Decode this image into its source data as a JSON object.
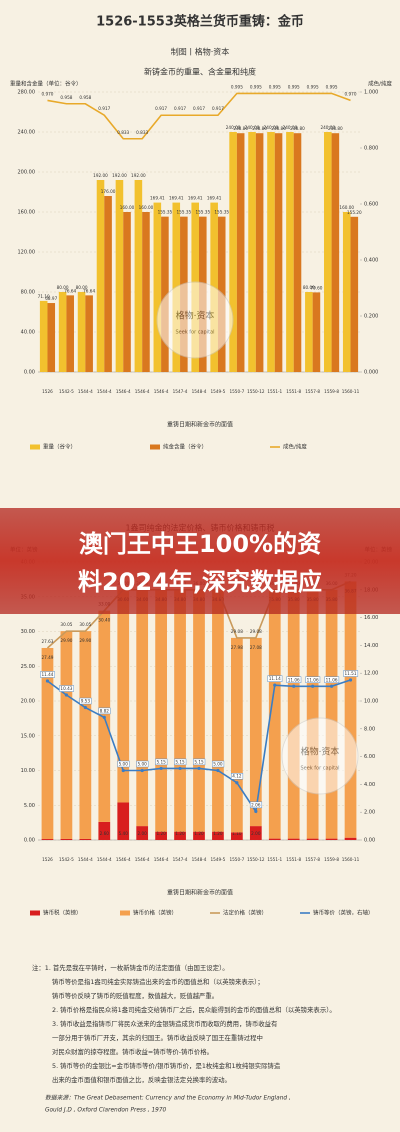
{
  "header": {
    "title": "1526-1553英格兰货币重铸：金币",
    "subtitle": "制图丨格物·资本"
  },
  "banner": {
    "lines": [
      "澳门王中王100%的资",
      "料2024年,深究数据应"
    ]
  },
  "watermarks": [
    {
      "title": "格物·资本",
      "slogan": "Seek for capital"
    },
    {
      "title": "格物·资本",
      "slogan": "Seek for capital"
    }
  ],
  "chart_data": [
    {
      "type": "bar",
      "title": "新铸金币的重量、含金量和纯度",
      "ylabel": "重量和含金量（单位：谷令）",
      "y2label": "成色/纯度",
      "xlabel": "重铸日期和新金币的面值",
      "grid": true,
      "stacked": false,
      "categories": [
        "1526",
        "1542-5",
        "1544-4",
        "1544-4",
        "1546-4",
        "1546-4",
        "1546-4",
        "1547-4",
        "1548-4",
        "1549-5",
        "1550-7",
        "1550-12",
        "1551-1",
        "1551-8",
        "1557-8",
        "1559-8",
        "1560-11"
      ],
      "ylim": [
        0,
        280
      ],
      "yticks": [
        {
          "value": 0,
          "label": "0.00"
        },
        {
          "value": 40,
          "label": "40.00"
        },
        {
          "value": 80,
          "label": "80.00"
        },
        {
          "value": 120,
          "label": "120.00"
        },
        {
          "value": 160,
          "label": "160.00"
        },
        {
          "value": 200,
          "label": "200.00"
        },
        {
          "value": 240,
          "label": "240.00"
        },
        {
          "value": 280,
          "label": "280.00"
        }
      ],
      "y2lim": [
        0,
        1
      ],
      "y2ticks": [
        {
          "value": 0,
          "label": "0.000"
        },
        {
          "value": 0.2,
          "label": "0.200"
        },
        {
          "value": 0.4,
          "label": "0.400"
        },
        {
          "value": 0.6,
          "label": "0.600"
        },
        {
          "value": 0.8,
          "label": "0.800"
        },
        {
          "value": 1,
          "label": "1.000"
        }
      ],
      "series": [
        {
          "name": "重量（谷令）",
          "color": "#f2c12e",
          "mark": "bar",
          "values": [
            71.1,
            80,
            80,
            192,
            192,
            192,
            169.41,
            169.41,
            169.41,
            169.41,
            240,
            240,
            240,
            240,
            80,
            240,
            160
          ],
          "value_labels": [
            "71.10",
            "80.00",
            "80.00",
            "192.00",
            "192.00",
            "192.00",
            "169.41",
            "169.41",
            "169.41",
            "169.41",
            "240.00",
            "240.00",
            "240.00",
            "240.00",
            "80.00",
            "240.00",
            "160.00"
          ]
        },
        {
          "name": "纯金含量（谷令）",
          "color": "#d9781f",
          "mark": "bar",
          "values": [
            68.97,
            76.64,
            76.64,
            176,
            160,
            160,
            155.35,
            155.35,
            155.35,
            155.35,
            238.8,
            238.8,
            238.8,
            238.8,
            79.6,
            238.8,
            155.2
          ],
          "value_labels": [
            "68.97",
            "76.64",
            "76.64",
            "176.00",
            "160.00",
            "160.00",
            "155.35",
            "155.35",
            "155.35",
            "155.35",
            "238.80",
            "238.80",
            "238.80",
            "238.80",
            "79.60",
            "238.80",
            "155.20"
          ]
        },
        {
          "name": "成色/纯度",
          "color": "#e8a92a",
          "mark": "line",
          "axis": "y2",
          "values": [
            0.97,
            0.958,
            0.958,
            0.917,
            0.833,
            0.833,
            0.917,
            0.917,
            0.917,
            0.917,
            0.995,
            0.995,
            0.995,
            0.995,
            0.995,
            0.995,
            0.97
          ],
          "value_labels": [
            "0.970",
            "0.958",
            "0.958",
            "0.917",
            "0.833",
            "0.833",
            "0.917",
            "0.917",
            "0.917",
            "0.917",
            "0.995",
            "0.995",
            "0.995",
            "0.995",
            "0.995",
            "0.995",
            "0.970"
          ]
        }
      ]
    },
    {
      "type": "bar",
      "title": "1盎司纯金的法定价格、铸币价格和铸币税",
      "ylabel": "单位：英镑",
      "y2label": "单位：英镑",
      "xlabel": "重铸日期和新金币的面值",
      "grid": true,
      "stacked": true,
      "categories": [
        "1526",
        "1542-5",
        "1544-4",
        "1544-4",
        "1546-4",
        "1546-4",
        "1546-4",
        "1547-4",
        "1548-4",
        "1549-5",
        "1550-7",
        "1550-12",
        "1551-1",
        "1551-8",
        "1557-8",
        "1559-8",
        "1560-11"
      ],
      "ylim": [
        0,
        40
      ],
      "yticks": [
        {
          "value": 0,
          "label": "0.00"
        },
        {
          "value": 5,
          "label": "5.00"
        },
        {
          "value": 10,
          "label": "10.00"
        },
        {
          "value": 15,
          "label": "15.00"
        },
        {
          "value": 20,
          "label": "20.00"
        },
        {
          "value": 25,
          "label": "25.00"
        },
        {
          "value": 30,
          "label": "30.00"
        },
        {
          "value": 35,
          "label": "35.00"
        },
        {
          "value": 40,
          "label": "40.00"
        }
      ],
      "y2lim": [
        0,
        20
      ],
      "y2ticks": [
        {
          "value": 0,
          "label": "0.00"
        },
        {
          "value": 2,
          "label": "2.00"
        },
        {
          "value": 4,
          "label": "4.00"
        },
        {
          "value": 6,
          "label": "6.00"
        },
        {
          "value": 8,
          "label": "8.00"
        },
        {
          "value": 10,
          "label": "10.00"
        },
        {
          "value": 12,
          "label": "12.00"
        },
        {
          "value": 14,
          "label": "14.00"
        },
        {
          "value": 16,
          "label": "16.00"
        },
        {
          "value": 18,
          "label": "18.00"
        },
        {
          "value": 20,
          "label": "20.00"
        }
      ],
      "series": [
        {
          "name": "铸币税（英镑）",
          "color": "#d81e1e",
          "mark": "bar",
          "values": [
            0.14,
            0.15,
            0.15,
            2.6,
            5.4,
            2,
            1.2,
            1.2,
            1.2,
            1.2,
            1.1,
            2,
            0.2,
            0.2,
            0.2,
            0.2,
            0.33
          ],
          "value_labels": [
            "0.14",
            "0.15",
            "0.15",
            "2.60",
            "5.40",
            "2.00",
            "1.20",
            "1.20",
            "1.20",
            "1.20",
            "1.10",
            "2.00",
            "0.20",
            "0.20",
            "0.20",
            "0.20",
            "0.33"
          ]
        },
        {
          "name": "铸币价格（英镑）",
          "color": "#f4a04e",
          "mark": "bar",
          "values": [
            27.49,
            29.9,
            29.9,
            30.4,
            30.6,
            34,
            34.8,
            34.8,
            34.8,
            34.8,
            27.98,
            27.08,
            35.8,
            35.8,
            35.8,
            35.8,
            36.87
          ],
          "value_labels": [
            "27.49",
            "29.90",
            "29.90",
            "30.40",
            "30.60",
            "34.00",
            "34.80",
            "34.80",
            "34.80",
            "34.80",
            "27.98",
            "27.08",
            "35.80",
            "35.80",
            "35.80",
            "35.80",
            "36.87"
          ]
        },
        {
          "name": "法定价格（英镑）",
          "color": "#c99a5b",
          "mark": "line",
          "values": [
            27.63,
            30.05,
            30.05,
            33,
            36,
            36,
            36,
            36,
            36,
            36,
            29.08,
            29.08,
            36,
            36,
            36,
            36,
            37.2
          ],
          "value_labels": [
            "27.63",
            "30.05",
            "30.05",
            "33.00",
            "36.00",
            "36.00",
            "36.00",
            "36.00",
            "36.00",
            "36.00",
            "29.08",
            "29.08",
            "36.00",
            "36.00",
            "36.00",
            "36.00",
            "37.20"
          ]
        },
        {
          "name": "铸币等价（英镑，右轴）",
          "color": "#3b7dc4",
          "mark": "line",
          "axis": "y2",
          "markers": true,
          "values": [
            11.44,
            10.43,
            9.53,
            8.82,
            5,
            5,
            5.15,
            5.15,
            5.15,
            5,
            4.12,
            2.06,
            11.14,
            11.06,
            11.06,
            11.06,
            11.51
          ],
          "value_labels": [
            "11.44",
            "10.43",
            "9.53",
            "8.82",
            "5.00",
            "5.00",
            "5.15",
            "5.15",
            "5.15",
            "5.00",
            "4.12",
            "2.06",
            "11.14",
            "11.06",
            "11.06",
            "11.06",
            "11.51"
          ]
        }
      ]
    }
  ],
  "notes": [
    "注：1. 首先是我在平铸时，一枚新铸金币的法定面值（由国王设定）。",
    "铸币等价是指1盎司纯金实际铸造出来的金币的面值总和（以英镑来表示）；",
    "铸币等价反映了铸币的贬值程度，数值越大，贬值越严重。",
    "2. 铸币价格是指民众将1盎司纯金交给铸币厂之后，民众能得到的金币的面值总和（以英镑来表示）。",
    "3. 铸币收益是指铸币厂将民众送来的金银铸造成货币而收取的费用，铸币收益有",
    "一部分用于铸币厂开支，其余的归国王。铸币收益反映了国王在重铸过程中",
    "对民众财富的掠夺程度。铸币收益=铸币等价-铸币价格。",
    "5. 铸币等价的金银比=金币铸币等价/银币铸币价，是1枚纯金和1枚纯银实际铸造",
    "出来的金币面值和银币面值之比，反映金银法定兑换率的波动。"
  ],
  "source": [
    "数据来源：The Great Debasement: Currency and the Economy in Mid-Tudor England ,",
    "Gould J.D , Oxford Clarendon Press , 1970"
  ]
}
